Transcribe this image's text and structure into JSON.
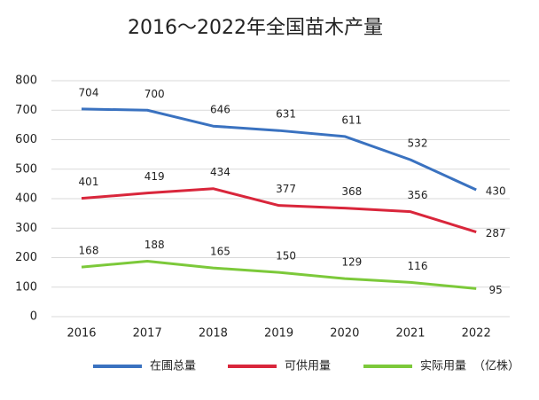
{
  "chart_data": {
    "type": "line",
    "title": "2016～2022年全国苗木产量",
    "categories": [
      "2016",
      "2017",
      "2018",
      "2019",
      "2020",
      "2021",
      "2022"
    ],
    "series": [
      {
        "name": "在圃总量",
        "color": "#3a72c0",
        "values": [
          704,
          700,
          646,
          631,
          611,
          532,
          430
        ]
      },
      {
        "name": "可供用量",
        "color": "#d9263b",
        "values": [
          401,
          419,
          434,
          377,
          368,
          356,
          287
        ]
      },
      {
        "name": "实际用量",
        "color": "#7cc93a",
        "values": [
          168,
          188,
          165,
          150,
          129,
          116,
          95
        ]
      }
    ],
    "unit_label": "（亿株）",
    "ylim": [
      0,
      800
    ],
    "yticks": [
      0,
      100,
      200,
      300,
      400,
      500,
      600,
      700,
      800
    ],
    "grid": true
  }
}
